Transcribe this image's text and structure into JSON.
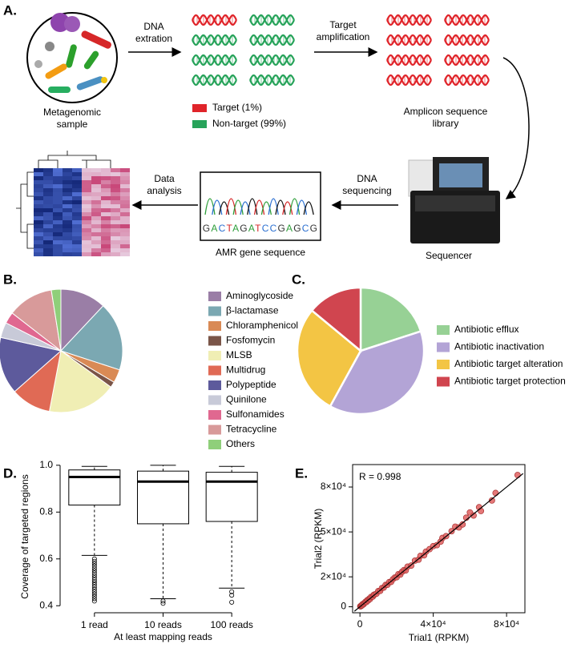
{
  "panel_a": {
    "label": "A.",
    "sample": [
      "Metagenomic",
      "sample"
    ],
    "extraction": [
      "DNA",
      "extration"
    ],
    "amplification": [
      "Target",
      "amplification"
    ],
    "legend": [
      "Target (1%)",
      "Non-target (99%)"
    ],
    "library": [
      "Amplicon sequence",
      "library"
    ],
    "sequencing": [
      "DNA",
      "sequencing"
    ],
    "analysis": [
      "Data",
      "analysis"
    ],
    "sequence": "GACTAGATCCGAGCG",
    "amr": "AMR gene sequence",
    "sequencer": "Sequencer"
  },
  "chart_data": [
    {
      "type": "pie",
      "panel_label": "B.",
      "categories": [
        "Aminoglycoside",
        "β-lactamase",
        "Chloramphenicol",
        "Fosfomycin",
        "MLSB",
        "Multidrug",
        "Polypeptide",
        "Quinilone",
        "Sulfonamides",
        "Tetracycline",
        "Others"
      ],
      "values": [
        12,
        18,
        3.5,
        1.5,
        18,
        10.5,
        15,
        4,
        3,
        12,
        2.5
      ],
      "colors": [
        "#9a7ea6",
        "#7ba8b2",
        "#d98a55",
        "#7a5548",
        "#f0eeb4",
        "#e06a55",
        "#5d5a9c",
        "#c8cad8",
        "#e06890",
        "#d89a9a",
        "#8fcf7a"
      ]
    },
    {
      "type": "pie",
      "panel_label": "C.",
      "categories": [
        "Antibiotic efflux",
        "Antibiotic inactivation",
        "Antibiotic target alteration",
        "Antibiotic target protection"
      ],
      "values": [
        20,
        38,
        28,
        14
      ],
      "colors": [
        "#97d195",
        "#b3a4d6",
        "#f3c544",
        "#d0454f"
      ]
    },
    {
      "type": "box",
      "panel_label": "D.",
      "categories": [
        "1 read",
        "10 reads",
        "100 reads"
      ],
      "x_label": "At least mapping reads",
      "y_label": "Coverage of targeted regions",
      "ylim": [
        0.37,
        1.02
      ],
      "yticks": [
        {
          "value": 0.4,
          "label": "0.4"
        },
        {
          "value": 0.6,
          "label": "0.6"
        },
        {
          "value": 0.8,
          "label": "0.8"
        },
        {
          "value": 1.0,
          "label": "1.0"
        }
      ],
      "boxes": [
        {
          "whislo": 0.615,
          "q1": 0.83,
          "med": 0.95,
          "q3": 0.98,
          "whishi": 0.995,
          "fliers": [
            0.42,
            0.43,
            0.44,
            0.45,
            0.46,
            0.47,
            0.48,
            0.49,
            0.5,
            0.51,
            0.52,
            0.53,
            0.54,
            0.55,
            0.56,
            0.57,
            0.58,
            0.59,
            0.6
          ]
        },
        {
          "whislo": 0.43,
          "q1": 0.75,
          "med": 0.93,
          "q3": 0.975,
          "whishi": 1.0,
          "fliers": [
            0.42,
            0.41
          ]
        },
        {
          "whislo": 0.475,
          "q1": 0.76,
          "med": 0.93,
          "q3": 0.97,
          "whishi": 0.995,
          "fliers": [
            0.46,
            0.445,
            0.415
          ]
        }
      ]
    },
    {
      "type": "scatter",
      "panel_label": "E.",
      "x_label": "Trial1 (RPKM)",
      "y_label": "Trial2 (RPKM)",
      "annotation": "R = 0.998",
      "xlim": [
        -4000,
        90000
      ],
      "ylim": [
        -4000,
        95000
      ],
      "xticks": [
        0,
        {
          "value": 40000,
          "label": "4×10⁴"
        },
        {
          "value": 80000,
          "label": "8×10⁴"
        }
      ],
      "yticks": [
        0,
        {
          "value": 20000,
          "label": "2×10⁴"
        },
        {
          "value": 50000,
          "label": "5×10⁴"
        },
        {
          "value": 80000,
          "label": "8×10⁴"
        }
      ],
      "color": "#e06060",
      "x": [
        200,
        500,
        800,
        1200,
        1500,
        2000,
        2500,
        3000,
        3500,
        4000,
        4500,
        5000,
        5500,
        6000,
        7000,
        7500,
        8000,
        9000,
        10000,
        11000,
        12000,
        13000,
        14000,
        15000,
        16000,
        17000,
        18000,
        19000,
        20000,
        21000,
        22000,
        23000,
        24000,
        25000,
        26000,
        28000,
        30000,
        32000,
        33000,
        35000,
        36000,
        38000,
        40000,
        42000,
        44000,
        45000,
        47000,
        50000,
        52000,
        54000,
        56000,
        58000,
        60000,
        62000,
        65000,
        66000,
        72000,
        74000,
        86000
      ],
      "y": [
        300,
        400,
        900,
        1000,
        1800,
        1700,
        2600,
        3300,
        3200,
        4400,
        4200,
        5300,
        5200,
        6500,
        6800,
        7900,
        8200,
        8700,
        10500,
        10600,
        12500,
        12800,
        14600,
        14700,
        16500,
        16600,
        18400,
        19500,
        19700,
        21800,
        21500,
        23400,
        24500,
        24300,
        26800,
        27500,
        30800,
        31500,
        34000,
        34400,
        36800,
        38500,
        40500,
        41200,
        43500,
        46000,
        47200,
        50500,
        53500,
        53000,
        55000,
        59500,
        63000,
        61000,
        66500,
        64000,
        71000,
        76000,
        88000
      ],
      "fit": {
        "x": [
          -3000,
          89000
        ],
        "y": [
          -3000,
          89000
        ]
      }
    }
  ]
}
